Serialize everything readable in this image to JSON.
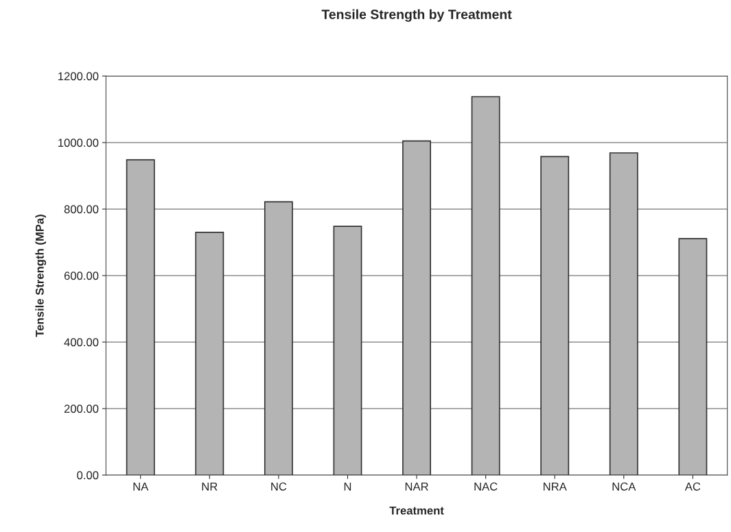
{
  "chart_data": {
    "type": "bar",
    "title": "Tensile Strength by Treatment",
    "xlabel": "Treatment",
    "ylabel": "Tensile Strength (MPa)",
    "categories": [
      "NA",
      "NR",
      "NC",
      "N",
      "NAR",
      "NAC",
      "NRA",
      "NCA",
      "AC"
    ],
    "values": [
      948,
      730,
      822,
      748,
      1005,
      1138,
      958,
      969,
      711
    ],
    "color": "#b4b4b4",
    "ylim": [
      0,
      1200
    ],
    "yticks": [
      {
        "value": 0,
        "label": "0.00"
      },
      {
        "value": 200,
        "label": "200.00"
      },
      {
        "value": 400,
        "label": "400.00"
      },
      {
        "value": 600,
        "label": "600.00"
      },
      {
        "value": 800,
        "label": "800.00"
      },
      {
        "value": 1000,
        "label": "1000.00"
      },
      {
        "value": 1200,
        "label": "1200.00"
      }
    ],
    "grid": "y"
  }
}
